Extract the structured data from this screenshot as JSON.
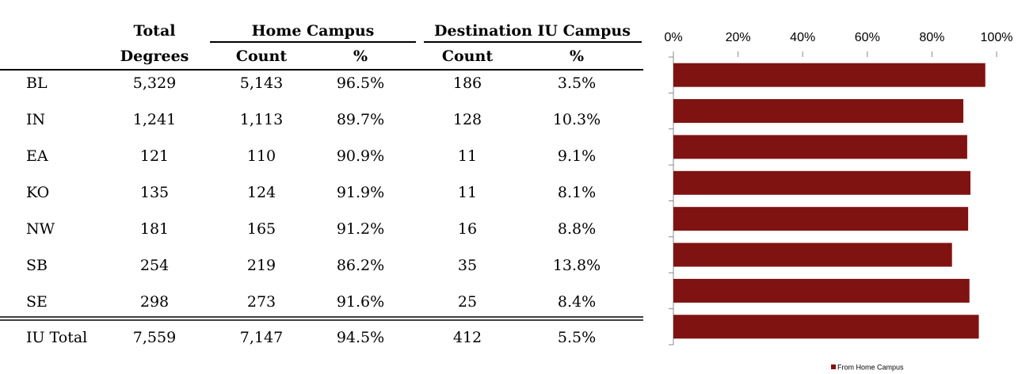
{
  "table": {
    "header_top": [
      "Total",
      "Home Campus",
      "Destination IU Campus"
    ],
    "header_bottom": [
      "Degrees",
      "Count",
      "%",
      "Count",
      "%"
    ],
    "rows": [
      [
        "BL",
        "5,329",
        "5,143",
        "96.5%",
        "186",
        "3.5%"
      ],
      [
        "IN",
        "1,241",
        "1,113",
        "89.7%",
        "128",
        "10.3%"
      ],
      [
        "EA",
        "121",
        "110",
        "90.9%",
        "11",
        "9.1%"
      ],
      [
        "KO",
        "135",
        "124",
        "91.9%",
        "11",
        "8.1%"
      ],
      [
        "NW",
        "181",
        "165",
        "91.2%",
        "16",
        "8.8%"
      ],
      [
        "SB",
        "254",
        "219",
        "86.2%",
        "35",
        "13.8%"
      ],
      [
        "SE",
        "298",
        "273",
        "91.6%",
        "25",
        "8.4%"
      ]
    ],
    "total": [
      "IU Total",
      "7,559",
      "7,147",
      "94.5%",
      "412",
      "5.5%"
    ]
  },
  "chart_data": {
    "type": "bar",
    "orientation": "horizontal",
    "categories": [
      null,
      null,
      null,
      null,
      null,
      null,
      null,
      null
    ],
    "series": [
      {
        "name": "From Home Campus",
        "color": "#7f1311",
        "values": [
          96.5,
          89.7,
          90.9,
          91.9,
          91.2,
          86.2,
          91.6,
          94.5
        ]
      }
    ],
    "xlim": [
      0,
      100
    ],
    "xticks": [
      {
        "value": 0,
        "label": "0%"
      },
      {
        "value": 20,
        "label": "20%"
      },
      {
        "value": 40,
        "label": "40%"
      },
      {
        "value": 60,
        "label": "60%"
      },
      {
        "value": 80,
        "label": "80%"
      },
      {
        "value": 100,
        "label": "100%"
      }
    ],
    "legend": "bottom"
  }
}
